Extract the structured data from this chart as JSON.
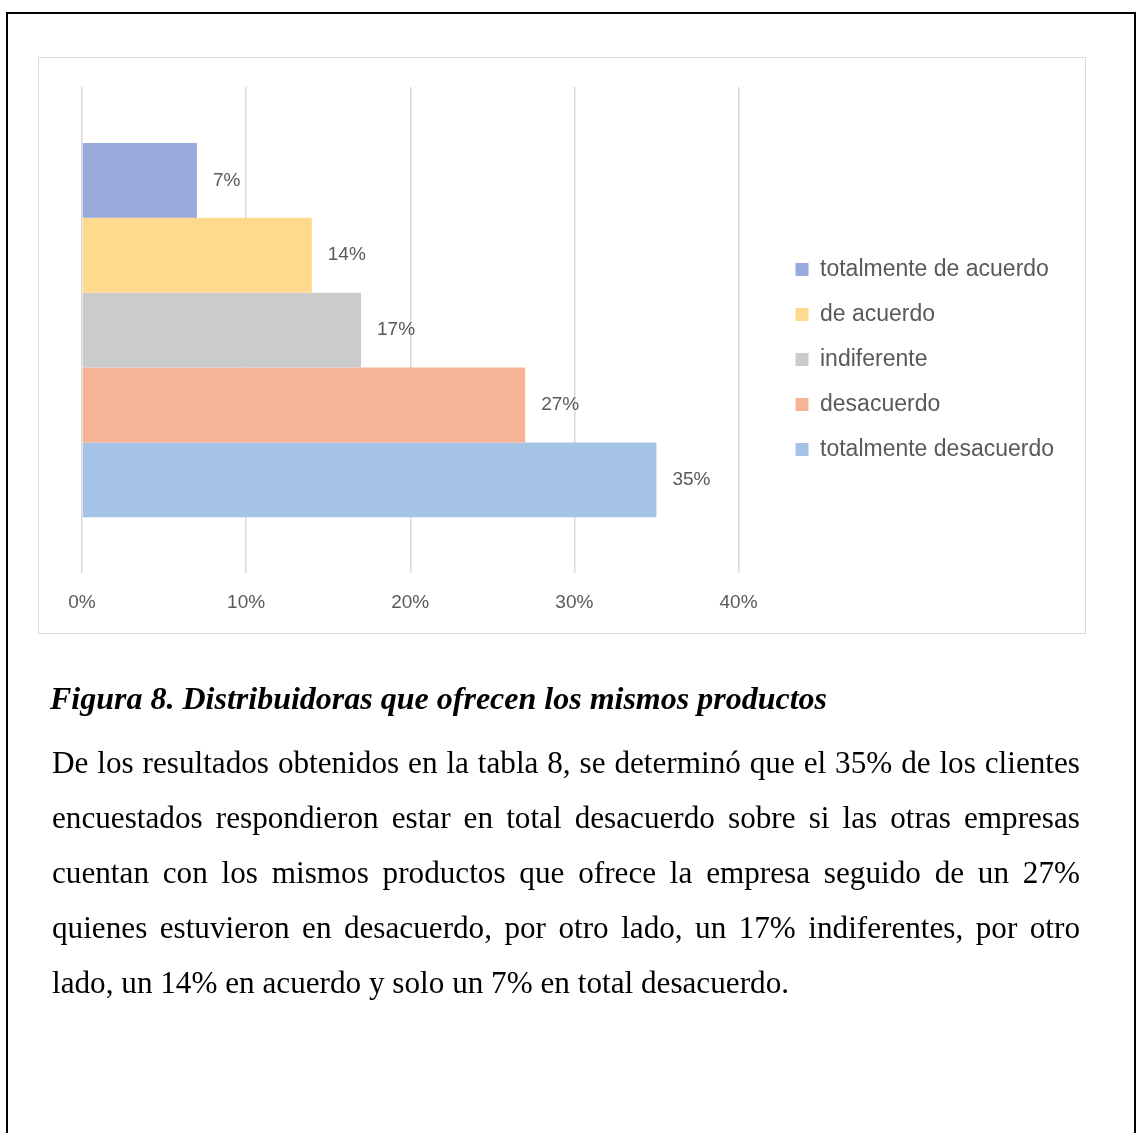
{
  "chart_data": {
    "type": "bar",
    "orientation": "horizontal",
    "categories": [
      null
    ],
    "series": [
      {
        "name": "totalmente de acuerdo",
        "color": "#9aa9dc",
        "values": [
          7
        ],
        "value_labels": [
          "7%"
        ]
      },
      {
        "name": "de acuerdo",
        "color": "#ffd98e",
        "values": [
          14
        ],
        "value_labels": [
          "14%"
        ]
      },
      {
        "name": "indiferente",
        "color": "#cbcbcb",
        "values": [
          17
        ],
        "value_labels": [
          "17%"
        ]
      },
      {
        "name": "desacuerdo",
        "color": "#f5b496",
        "values": [
          27
        ],
        "value_labels": [
          "27%"
        ]
      },
      {
        "name": "totalmente desacuerdo",
        "color": "#a5c3e6",
        "values": [
          35
        ],
        "value_labels": [
          "35%"
        ]
      }
    ],
    "xlim": [
      0,
      40
    ],
    "xticks": [
      {
        "value": 0,
        "label": "0%"
      },
      {
        "value": 10,
        "label": "10%"
      },
      {
        "value": 20,
        "label": "20%"
      },
      {
        "value": 30,
        "label": "30%"
      },
      {
        "value": 40,
        "label": "40%"
      }
    ],
    "grid": "x",
    "legend": "right",
    "annotations": [
      "Figura 8. Distribuidoras que ofrecen los mismos productos",
      "De los resultados obtenidos en la tabla 8, se determinó que el 35% de los clientes encuestados respondieron estar en total desacuerdo sobre si las otras empresas cuentan con los mismos productos que ofrece la empresa seguido de un 27% quienes estuvieron en desacuerdo, por otro lado, un 17% indiferentes, por otro lado, un 14% en acuerdo y solo un 7% en total desacuerdo."
    ]
  }
}
